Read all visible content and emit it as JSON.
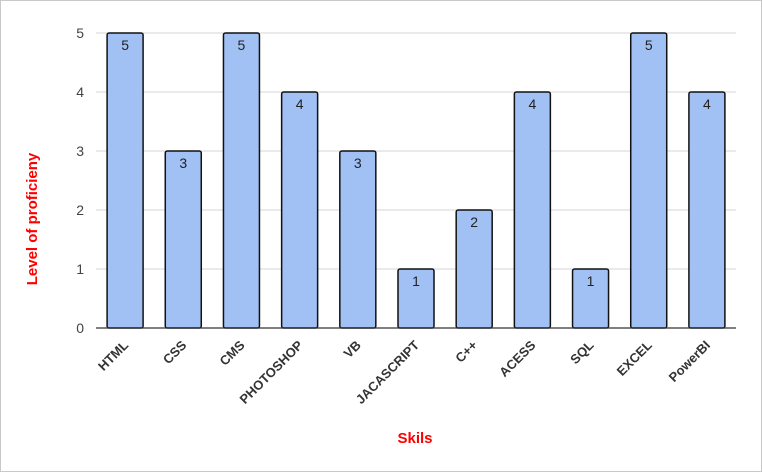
{
  "chart_data": {
    "type": "bar",
    "title": "",
    "xlabel": "Skils",
    "ylabel": "Level of proficieny",
    "categories": [
      "HTML",
      "CSS",
      "CMS",
      "PHOTOSHOP",
      "VB",
      "JACASCRIPT",
      "C++",
      "ACESS",
      "SQL",
      "EXCEL",
      "PowerBI"
    ],
    "values": [
      5,
      3,
      5,
      4,
      3,
      1,
      2,
      4,
      1,
      5,
      4
    ],
    "data_labels": [
      "5",
      "3",
      "5",
      "4",
      "3",
      "1",
      "2",
      "4",
      "1",
      "5",
      "4"
    ],
    "ylim": [
      0,
      5
    ],
    "yticks": [
      "0",
      "1",
      "2",
      "3",
      "4",
      "5"
    ],
    "grid": true,
    "legend": "none",
    "colors": {
      "bar_fill": "#a1c0f4",
      "bar_stroke": "#111111",
      "axis_title": "#ff0000",
      "gridline": "#d6d6d6"
    }
  }
}
